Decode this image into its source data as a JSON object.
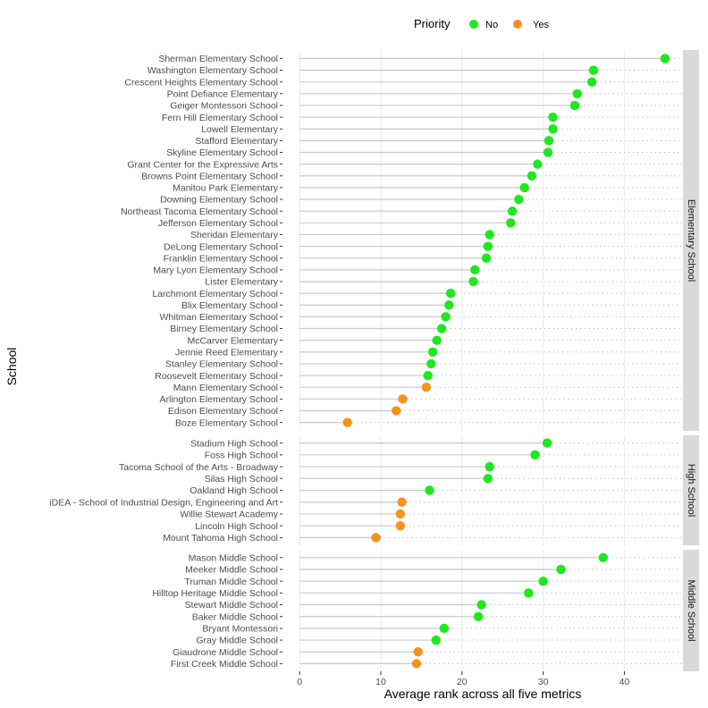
{
  "chart_data": {
    "type": "dot-lollipop",
    "xlabel": "Average rank across all five metrics",
    "ylabel": "School",
    "xlim": [
      -2,
      47
    ],
    "x_ticks": [
      0,
      10,
      20,
      30,
      40
    ],
    "x_tick_labels": [
      "0",
      "10",
      "20",
      "30",
      "40"
    ],
    "legend": {
      "title": "Priority",
      "position": "top",
      "entries": [
        {
          "label": "No",
          "color": "#1ee81e"
        },
        {
          "label": "Yes",
          "color": "#f5931d"
        }
      ]
    },
    "panels": [
      {
        "name": "Elementary School",
        "rows": [
          {
            "school": "Sherman Elementary School",
            "value": 45.0,
            "priority": "No"
          },
          {
            "school": "Washington Elementary School",
            "value": 36.2,
            "priority": "No"
          },
          {
            "school": "Crescent Heights Elementary School",
            "value": 36.0,
            "priority": "No"
          },
          {
            "school": "Point Defiance Elementary",
            "value": 34.2,
            "priority": "No"
          },
          {
            "school": "Geiger Montessori School",
            "value": 33.9,
            "priority": "No"
          },
          {
            "school": "Fern Hill Elementary School",
            "value": 31.2,
            "priority": "No"
          },
          {
            "school": "Lowell Elementary",
            "value": 31.2,
            "priority": "No"
          },
          {
            "school": "Stafford Elementary",
            "value": 30.7,
            "priority": "No"
          },
          {
            "school": "Skyline Elementary School",
            "value": 30.6,
            "priority": "No"
          },
          {
            "school": "Grant Center for the Expressive Arts",
            "value": 29.3,
            "priority": "No"
          },
          {
            "school": "Browns Point Elementary School",
            "value": 28.6,
            "priority": "No"
          },
          {
            "school": "Manitou Park Elementary",
            "value": 27.7,
            "priority": "No"
          },
          {
            "school": "Downing Elementary School",
            "value": 27.0,
            "priority": "No"
          },
          {
            "school": "Northeast Tacoma Elementary School",
            "value": 26.2,
            "priority": "No"
          },
          {
            "school": "Jefferson Elementary School",
            "value": 26.0,
            "priority": "No"
          },
          {
            "school": "Sheridan Elementary",
            "value": 23.4,
            "priority": "No"
          },
          {
            "school": "DeLong Elementary School",
            "value": 23.2,
            "priority": "No"
          },
          {
            "school": "Franklin Elementary School",
            "value": 23.0,
            "priority": "No"
          },
          {
            "school": "Mary Lyon Elementary School",
            "value": 21.6,
            "priority": "No"
          },
          {
            "school": "Lister Elementary",
            "value": 21.4,
            "priority": "No"
          },
          {
            "school": "Larchmont Elementary School",
            "value": 18.6,
            "priority": "No"
          },
          {
            "school": "Blix Elementary School",
            "value": 18.4,
            "priority": "No"
          },
          {
            "school": "Whitman Elementary School",
            "value": 18.0,
            "priority": "No"
          },
          {
            "school": "Birney Elementary School",
            "value": 17.5,
            "priority": "No"
          },
          {
            "school": "McCarver Elementary",
            "value": 16.9,
            "priority": "No"
          },
          {
            "school": "Jennie Reed Elementary",
            "value": 16.4,
            "priority": "No"
          },
          {
            "school": "Stanley Elementary School",
            "value": 16.2,
            "priority": "No"
          },
          {
            "school": "Roosevelt Elementary School",
            "value": 15.8,
            "priority": "No"
          },
          {
            "school": "Mann Elementary School",
            "value": 15.6,
            "priority": "Yes"
          },
          {
            "school": "Arlington Elementary School",
            "value": 12.7,
            "priority": "Yes"
          },
          {
            "school": "Edison Elementary School",
            "value": 11.9,
            "priority": "Yes"
          },
          {
            "school": "Boze Elementary School",
            "value": 5.9,
            "priority": "Yes"
          }
        ]
      },
      {
        "name": "High School",
        "rows": [
          {
            "school": "Stadium High School",
            "value": 30.5,
            "priority": "No"
          },
          {
            "school": "Foss High School",
            "value": 29.0,
            "priority": "No"
          },
          {
            "school": "Tacoma School of the Arts - Broadway",
            "value": 23.4,
            "priority": "No"
          },
          {
            "school": "Silas High School",
            "value": 23.2,
            "priority": "No"
          },
          {
            "school": "Oakland High School",
            "value": 16.0,
            "priority": "No"
          },
          {
            "school": "iDEA - School of Industrial Design, Engineering and Art",
            "value": 12.6,
            "priority": "Yes"
          },
          {
            "school": "Willie Stewart Academy",
            "value": 12.4,
            "priority": "Yes"
          },
          {
            "school": "Lincoln High School",
            "value": 12.4,
            "priority": "Yes"
          },
          {
            "school": "Mount Tahoma High School",
            "value": 9.4,
            "priority": "Yes"
          }
        ]
      },
      {
        "name": "Middle School",
        "rows": [
          {
            "school": "Mason Middle School",
            "value": 37.4,
            "priority": "No"
          },
          {
            "school": "Meeker Middle School",
            "value": 32.2,
            "priority": "No"
          },
          {
            "school": "Truman Middle School",
            "value": 30.0,
            "priority": "No"
          },
          {
            "school": "Hilltop Heritage Middle School",
            "value": 28.2,
            "priority": "No"
          },
          {
            "school": "Stewart Middle School",
            "value": 22.4,
            "priority": "No"
          },
          {
            "school": "Baker Middle School",
            "value": 22.0,
            "priority": "No"
          },
          {
            "school": "Bryant Montessori",
            "value": 17.8,
            "priority": "No"
          },
          {
            "school": "Gray Middle School",
            "value": 16.8,
            "priority": "No"
          },
          {
            "school": "Giaudrone Middle School",
            "value": 14.6,
            "priority": "Yes"
          },
          {
            "school": "First Creek Middle School",
            "value": 14.4,
            "priority": "Yes"
          }
        ]
      }
    ]
  }
}
